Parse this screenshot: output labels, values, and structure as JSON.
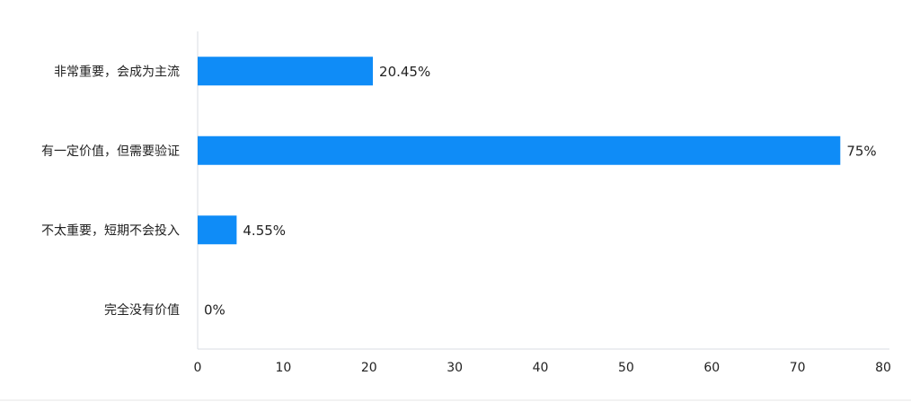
{
  "chart_data": {
    "type": "hbar",
    "categories": [
      "非常重要，会成为主流",
      "有一定价值，但需要验证",
      "不太重要，短期不会投入",
      "完全没有价值"
    ],
    "values": [
      20.45,
      75,
      4.55,
      0
    ],
    "value_labels": [
      "20.45%",
      "75%",
      "4.55%",
      "0%"
    ],
    "color": "#0f8cf7",
    "xlim": [
      0,
      80
    ],
    "xticks": [
      0,
      10,
      20,
      30,
      40,
      50,
      60,
      70,
      80
    ],
    "grid": false
  }
}
